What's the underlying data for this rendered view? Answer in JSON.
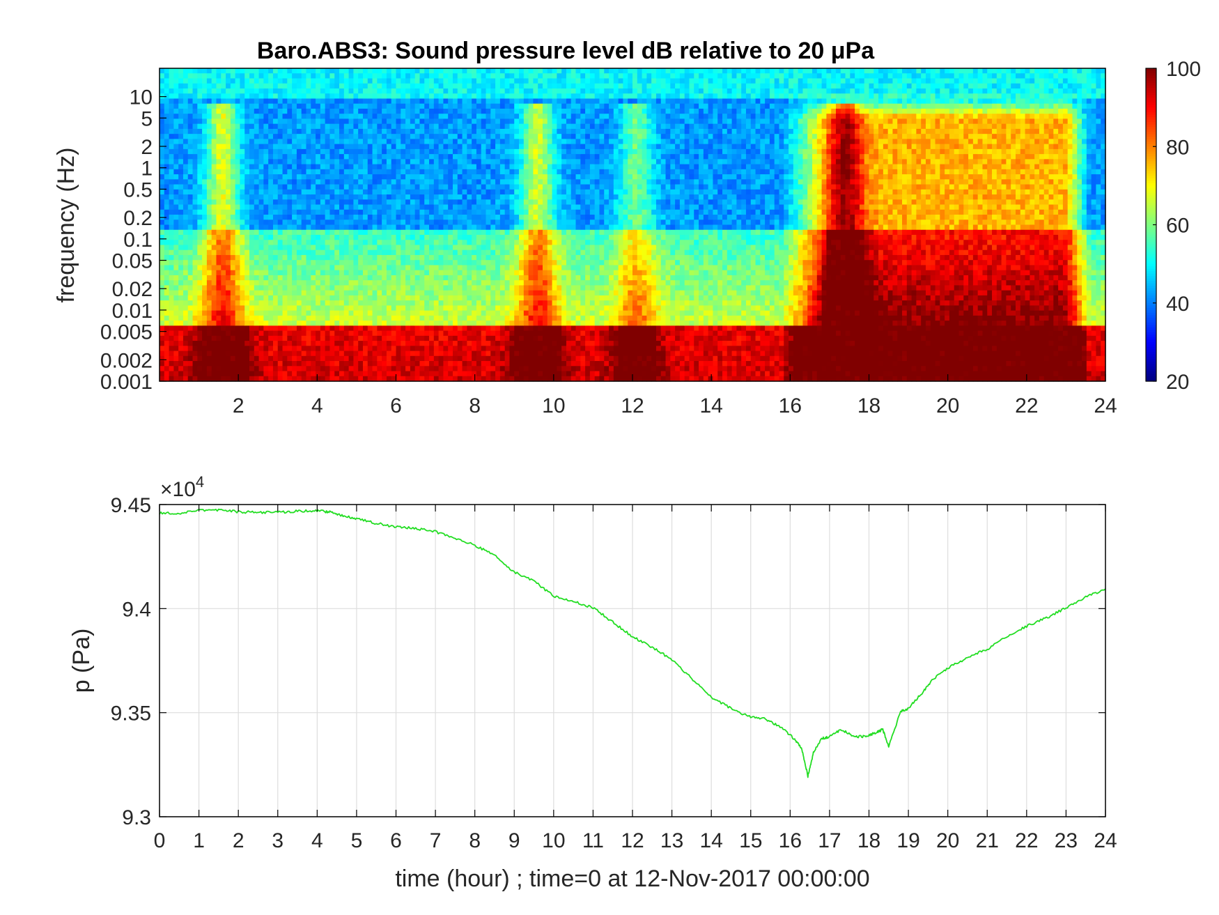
{
  "figure": {
    "background": "#ffffff"
  },
  "chart_data": [
    {
      "type": "heatmap",
      "title": "Baro.ABS3: Sound pressure level dB relative to 20 μPa",
      "xlabel": "",
      "ylabel": "frequency (Hz)",
      "x_range": [
        0,
        24
      ],
      "x_ticks": [
        2,
        4,
        6,
        8,
        10,
        12,
        14,
        16,
        18,
        20,
        22,
        24
      ],
      "y_scale": "log",
      "y_range": [
        0.001,
        25
      ],
      "y_ticks": [
        {
          "value": 0.001,
          "label": "0.001"
        },
        {
          "value": 0.002,
          "label": "0.002"
        },
        {
          "value": 0.005,
          "label": "0.005"
        },
        {
          "value": 0.01,
          "label": "0.01"
        },
        {
          "value": 0.02,
          "label": "0.02"
        },
        {
          "value": 0.05,
          "label": "0.05"
        },
        {
          "value": 0.1,
          "label": "0.1"
        },
        {
          "value": 0.2,
          "label": "0.2"
        },
        {
          "value": 0.5,
          "label": "0.5"
        },
        {
          "value": 1,
          "label": "1"
        },
        {
          "value": 2,
          "label": "2"
        },
        {
          "value": 5,
          "label": "5"
        },
        {
          "value": 10,
          "label": "10"
        }
      ],
      "colorbar": {
        "range": [
          20,
          100
        ],
        "ticks": [
          20,
          40,
          60,
          80,
          100
        ],
        "colormap": "jet"
      },
      "activity_events": [
        {
          "t": 1.6,
          "strength": 0.85
        },
        {
          "t": 9.6,
          "strength": 0.8
        },
        {
          "t": 12.1,
          "strength": 0.55
        },
        {
          "t": 17.4,
          "strength": 0.75
        }
      ],
      "grid": false
    },
    {
      "type": "line",
      "title": "",
      "xlabel": "time (hour) ; time=0 at 12-Nov-2017 00:00:00",
      "ylabel": "p (Pa)",
      "y_exponent_label": "×10",
      "y_exponent_power": "4",
      "xlim": [
        0,
        24
      ],
      "ylim": [
        9.3,
        9.45
      ],
      "x_ticks": [
        0,
        1,
        2,
        3,
        4,
        5,
        6,
        7,
        8,
        9,
        10,
        11,
        12,
        13,
        14,
        15,
        16,
        17,
        18,
        19,
        20,
        21,
        22,
        23,
        24
      ],
      "y_ticks": [
        {
          "value": 9.3,
          "label": "9.3"
        },
        {
          "value": 9.35,
          "label": "9.35"
        },
        {
          "value": 9.4,
          "label": "9.4"
        },
        {
          "value": 9.45,
          "label": "9.45"
        }
      ],
      "grid": true,
      "line_color": "#22dd22",
      "series": [
        {
          "x": [
            0,
            0.5,
            1,
            1.5,
            2,
            2.5,
            3,
            3.5,
            4,
            4.3,
            4.6,
            5,
            5.5,
            6,
            6.5,
            7,
            7.5,
            8,
            8.5,
            9,
            9.5,
            10,
            10.5,
            11,
            11.5,
            12,
            12.5,
            13,
            13.5,
            14,
            14.5,
            15,
            15.4,
            15.8,
            16.1,
            16.3,
            16.45,
            16.6,
            16.8,
            17.0,
            17.3,
            17.6,
            17.9,
            18.2,
            18.35,
            18.5,
            18.8,
            19.0,
            19.3,
            19.6,
            20.0,
            20.5,
            21.0,
            21.5,
            22.0,
            22.5,
            23.0,
            23.5,
            24.0
          ],
          "y": [
            9.446,
            9.4458,
            9.4472,
            9.4475,
            9.4465,
            9.4462,
            9.4462,
            9.4468,
            9.447,
            9.4465,
            9.445,
            9.4432,
            9.441,
            9.4392,
            9.4386,
            9.437,
            9.4338,
            9.4305,
            9.4255,
            9.4175,
            9.4132,
            9.406,
            9.4035,
            9.4005,
            9.3935,
            9.3865,
            9.3815,
            9.3755,
            9.3665,
            9.3575,
            9.352,
            9.3478,
            9.3468,
            9.3425,
            9.3375,
            9.3325,
            9.3195,
            9.3315,
            9.3375,
            9.3385,
            9.342,
            9.3385,
            9.3385,
            9.3405,
            9.342,
            9.3335,
            9.3505,
            9.352,
            9.3585,
            9.3655,
            9.3715,
            9.3765,
            9.3805,
            9.3865,
            9.3915,
            9.3955,
            9.4005,
            9.4055,
            9.4095
          ]
        }
      ]
    }
  ]
}
